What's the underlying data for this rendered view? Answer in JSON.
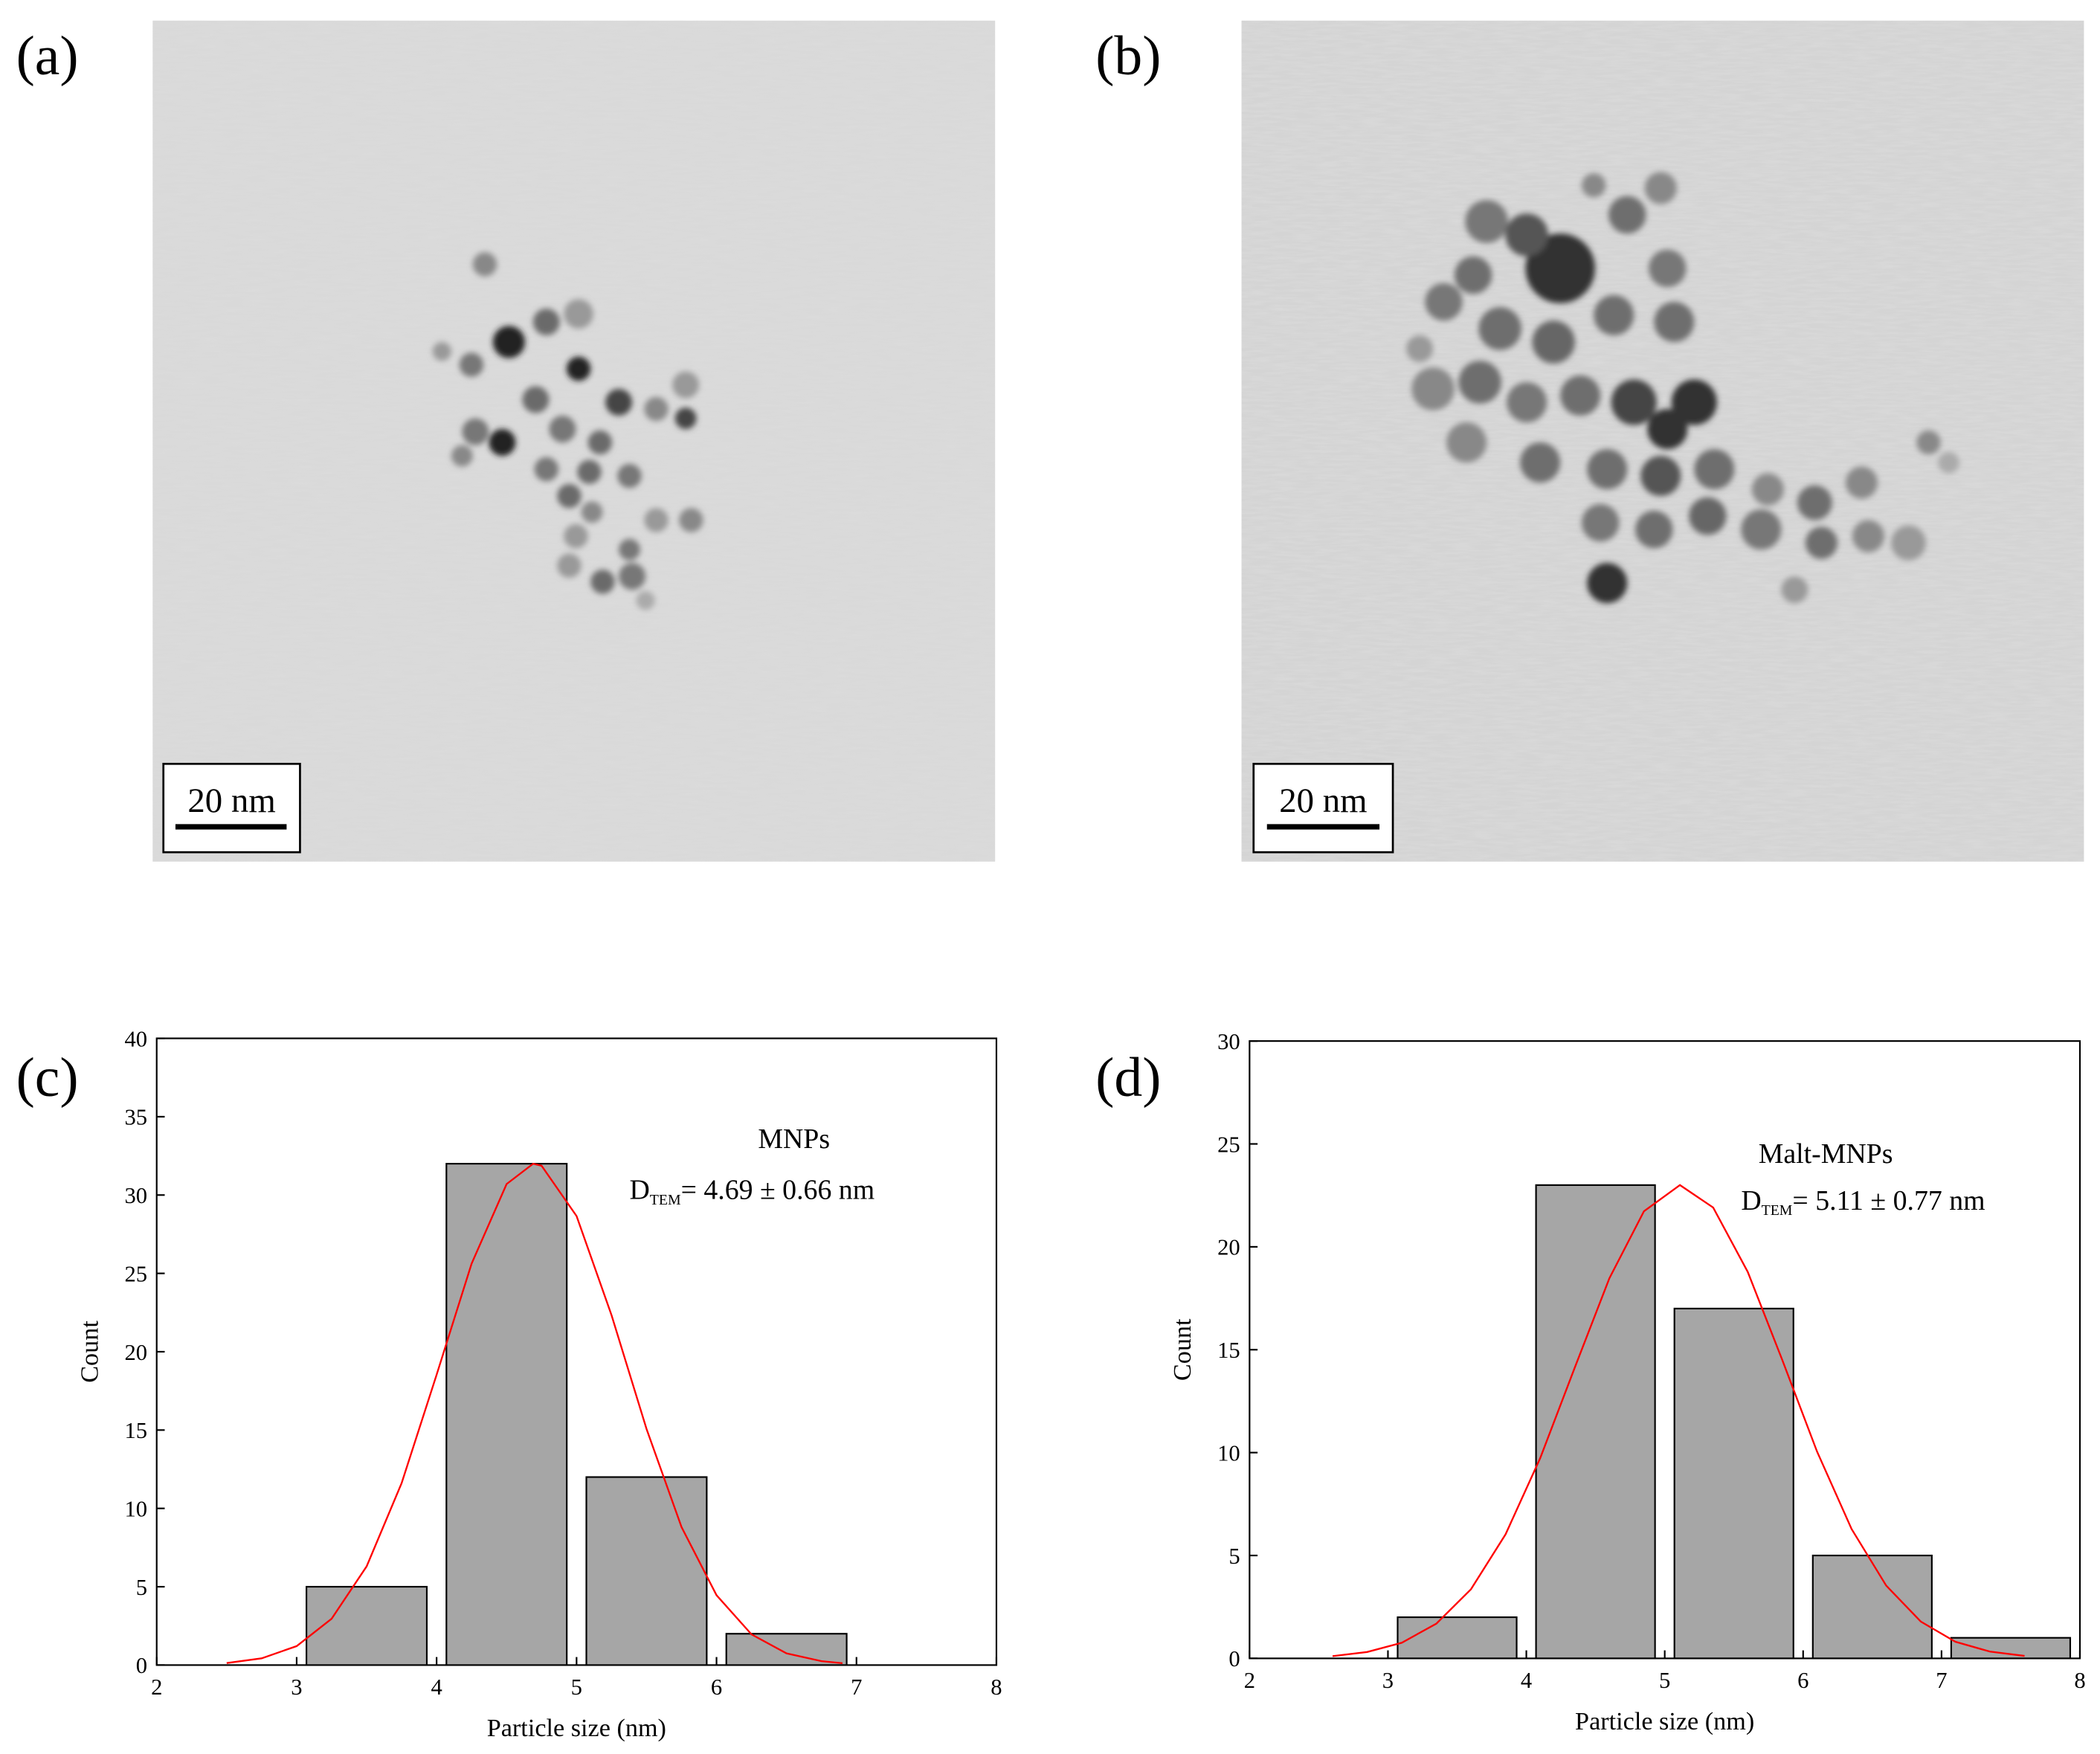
{
  "images": [
    {
      "label": "(a)",
      "scale_bar": "20 nm"
    },
    {
      "label": "(b)",
      "scale_bar": "20 nm"
    }
  ],
  "chart_data": [
    {
      "type": "histogram",
      "panel_label": "(c)",
      "xlabel": "Particle size (nm)",
      "ylabel": "Count",
      "bins": [
        3,
        4,
        5,
        6,
        7
      ],
      "values": [
        5,
        32,
        12,
        2
      ],
      "color": "#a6a6a6",
      "xlim": [
        2,
        8
      ],
      "xticks": [
        2,
        3,
        4,
        5,
        6,
        7,
        8
      ],
      "ylim": [
        0,
        40
      ],
      "yticks": [
        0,
        5,
        10,
        15,
        20,
        25,
        30,
        35,
        40
      ],
      "annotation": "MNPs",
      "fit_label": {
        "symbol": "D",
        "subscript": "TEM",
        "text": "= 4.69 ± 0.66 nm"
      },
      "fit": {
        "color": "#ff0000",
        "x": [
          2.5,
          2.75,
          3.0,
          3.25,
          3.5,
          3.75,
          4.0,
          4.25,
          4.5,
          4.69,
          4.75,
          5.0,
          5.25,
          5.5,
          5.75,
          6.0,
          6.25,
          6.5,
          6.75,
          6.9
        ],
        "y": [
          0.13,
          0.43,
          1.21,
          2.96,
          6.3,
          11.61,
          18.53,
          25.62,
          30.7,
          32,
          31.87,
          28.66,
          22.33,
          15.07,
          8.81,
          4.46,
          1.96,
          0.75,
          0.25,
          0.12
        ]
      }
    },
    {
      "type": "histogram",
      "panel_label": "(d)",
      "xlabel": "Particle size (nm)",
      "ylabel": "Count",
      "bins": [
        3,
        4,
        5,
        6,
        7,
        8
      ],
      "values": [
        2,
        23,
        17,
        5,
        1
      ],
      "color": "#a6a6a6",
      "xlim": [
        2,
        8
      ],
      "xticks": [
        2,
        3,
        4,
        5,
        6,
        7,
        8
      ],
      "ylim": [
        0,
        30
      ],
      "yticks": [
        0,
        5,
        10,
        15,
        20,
        25,
        30
      ],
      "annotation": "Malt-MNPs",
      "fit_label": {
        "symbol": "D",
        "subscript": "TEM",
        "text": "= 5.11 ± 0.77 nm"
      },
      "fit": {
        "color": "#ff0000",
        "x": [
          2.6,
          2.85,
          3.1,
          3.35,
          3.6,
          3.85,
          4.1,
          4.35,
          4.6,
          4.85,
          5.11,
          5.35,
          5.6,
          5.85,
          6.1,
          6.35,
          6.6,
          6.85,
          7.1,
          7.35,
          7.6
        ],
        "y": [
          0.11,
          0.31,
          0.76,
          1.69,
          3.36,
          6.03,
          9.73,
          14.13,
          18.47,
          21.73,
          23,
          21.91,
          18.78,
          14.49,
          10.06,
          6.29,
          3.54,
          1.79,
          0.81,
          0.33,
          0.12
        ]
      }
    }
  ]
}
